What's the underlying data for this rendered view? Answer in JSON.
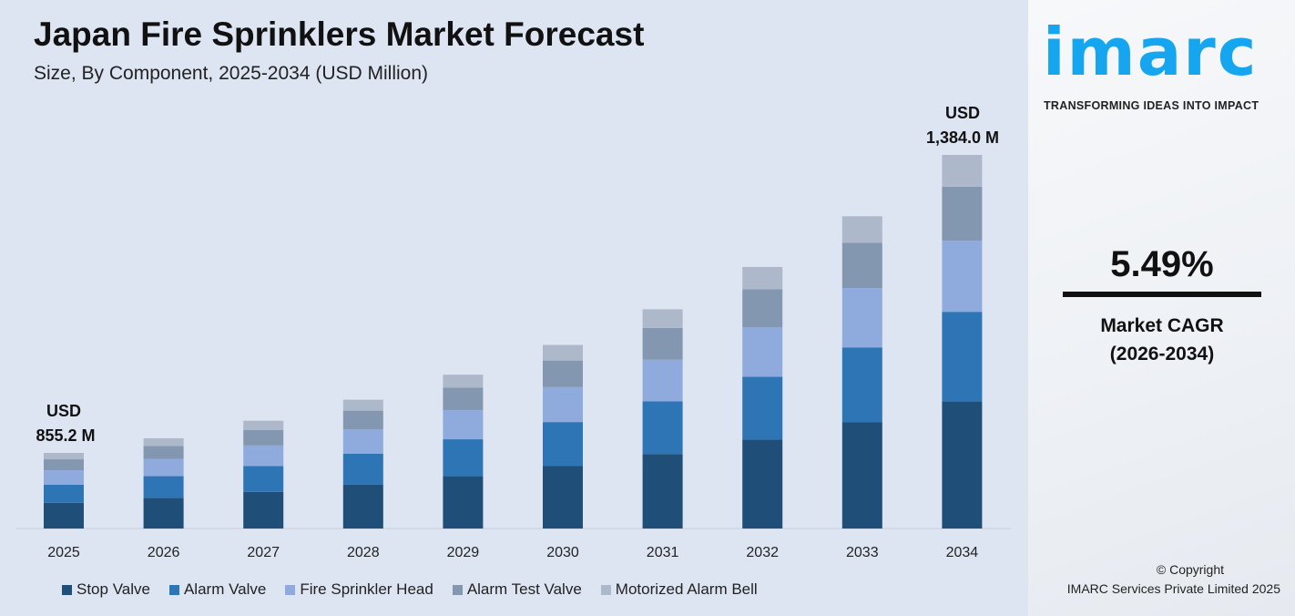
{
  "chart_data": {
    "type": "bar",
    "stacked": true,
    "title": "Japan Fire Sprinklers Market Forecast",
    "subtitle": "Size, By Component, 2025-2034 (USD Million)",
    "categories": [
      "2025",
      "2026",
      "2027",
      "2028",
      "2029",
      "2030",
      "2031",
      "2032",
      "2033",
      "2034"
    ],
    "series": [
      {
        "name": "Stop Valve",
        "color": "#1f4e79",
        "values": [
          290.8,
          306.7,
          323.6,
          341.4,
          360.2,
          379.9,
          400.7,
          422.6,
          445.8,
          470.6
        ]
      },
      {
        "name": "Alarm Valve",
        "color": "#2e75b6",
        "values": [
          205.2,
          216.5,
          228.4,
          241.0,
          254.2,
          268.1,
          282.8,
          298.3,
          314.6,
          332.2
        ]
      },
      {
        "name": "Fire Sprinkler Head",
        "color": "#8faadc",
        "values": [
          162.5,
          171.4,
          180.8,
          190.8,
          201.3,
          212.3,
          224.0,
          236.2,
          249.2,
          263.0
        ]
      },
      {
        "name": "Alarm Test Valve",
        "color": "#8497b0",
        "values": [
          124.0,
          130.8,
          138.0,
          145.6,
          153.6,
          162.0,
          170.9,
          180.3,
          190.2,
          200.7
        ]
      },
      {
        "name": "Motorized Alarm Bell",
        "color": "#adb9ca",
        "values": [
          72.7,
          76.6,
          80.9,
          85.3,
          90.0,
          94.9,
          100.2,
          105.6,
          111.4,
          117.5
        ]
      }
    ],
    "totals": [
      855.2,
      902.0,
      951.7,
      1004.1,
      1059.3,
      1117.2,
      1178.6,
      1243.0,
      1311.2,
      1384.0
    ],
    "annotations": {
      "first_line1": "USD",
      "first_line2": "855.2 M",
      "last_line1": "USD",
      "last_line2": "1,384.0 M"
    },
    "xlabel": "",
    "ylabel": "",
    "grid": false,
    "legend": "bottom"
  },
  "brand": {
    "logo": "imarc",
    "tagline": "TRANSFORMING IDEAS INTO IMPACT",
    "color": "#16a6f0"
  },
  "cagr": {
    "value": "5.49%",
    "label_line1": "Market CAGR",
    "label_line2": "(2026-2034)"
  },
  "footer": {
    "copyright": "© Copyright",
    "company": "IMARC Services Private Limited 2025"
  }
}
